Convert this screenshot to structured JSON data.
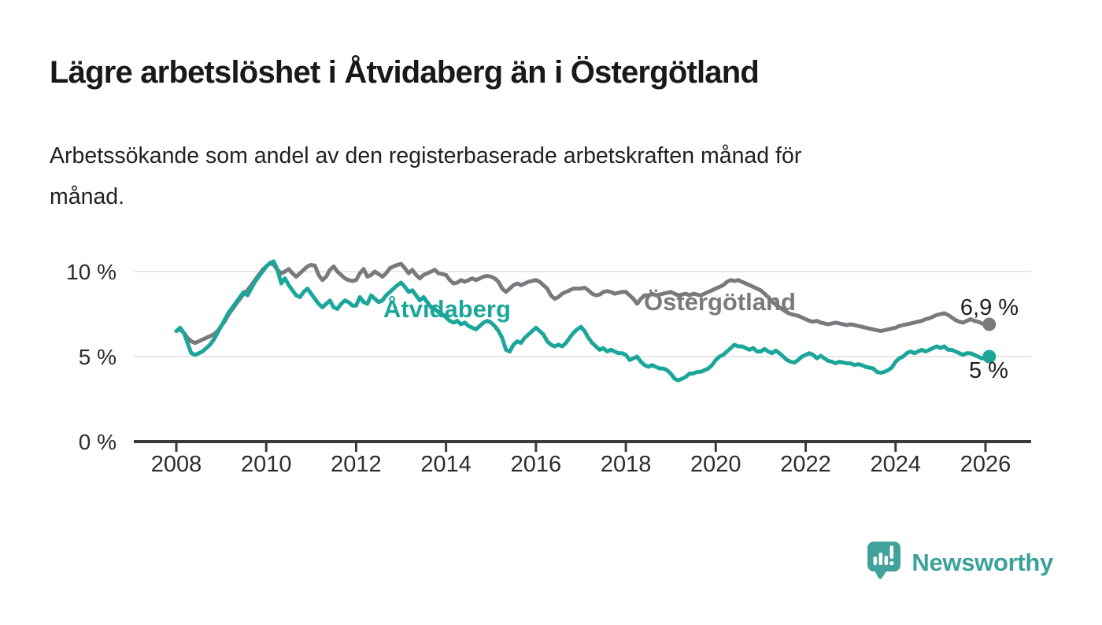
{
  "header": {
    "title": "Lägre arbetslöshet i Åtvidaberg än i Östergötland",
    "subtitle": "Arbetssökande som andel av den registerbaserade arbetskraften månad för månad."
  },
  "chart_data": {
    "type": "line",
    "frequency": "monthly",
    "x_start": {
      "year": 2008,
      "month": 1
    },
    "x_end": {
      "year": 2026,
      "month": 2
    },
    "x_tick_years": [
      2008,
      2010,
      2012,
      2014,
      2016,
      2018,
      2020,
      2022,
      2024,
      2026
    ],
    "y_axis": {
      "range": [
        0,
        11
      ],
      "ticks": [
        {
          "value": 0,
          "label": "0 %",
          "gridline": false,
          "is_axis": true
        },
        {
          "value": 5,
          "label": "5 %",
          "gridline": true,
          "is_axis": false
        },
        {
          "value": 10,
          "label": "10 %",
          "gridline": true,
          "is_axis": false
        }
      ]
    },
    "grid": "horizontal",
    "legend_position": "inline-labels",
    "series": [
      {
        "name": "Östergötland",
        "color": "#7a7a7e",
        "end_label": "6,9 %",
        "end_value": 6.9,
        "values": [
          6.5,
          6.6,
          6.4,
          6.1,
          5.9,
          5.8,
          5.9,
          6.0,
          6.1,
          6.2,
          6.3,
          6.5,
          6.8,
          7.1,
          7.5,
          7.8,
          8.1,
          8.4,
          8.7,
          8.9,
          9.2,
          9.5,
          9.8,
          10.1,
          10.3,
          10.5,
          10.4,
          10.1,
          9.9,
          10.0,
          10.15,
          9.9,
          9.7,
          9.9,
          10.1,
          10.3,
          10.4,
          10.35,
          9.8,
          9.5,
          9.7,
          10.1,
          10.3,
          10.0,
          9.8,
          9.6,
          9.5,
          9.45,
          9.5,
          9.9,
          10.15,
          9.7,
          9.8,
          10.0,
          9.85,
          9.7,
          9.9,
          10.2,
          10.3,
          10.4,
          10.45,
          10.2,
          9.9,
          10.1,
          9.8,
          9.6,
          9.8,
          9.9,
          10.0,
          10.1,
          9.9,
          9.85,
          9.8,
          9.5,
          9.3,
          9.35,
          9.5,
          9.4,
          9.5,
          9.6,
          9.5,
          9.6,
          9.7,
          9.75,
          9.7,
          9.6,
          9.4,
          9.0,
          8.8,
          9.0,
          9.2,
          9.3,
          9.2,
          9.3,
          9.4,
          9.45,
          9.5,
          9.4,
          9.2,
          9.0,
          8.6,
          8.4,
          8.5,
          8.7,
          8.8,
          8.9,
          9.0,
          9.0,
          9.0,
          9.05,
          8.9,
          8.7,
          8.6,
          8.65,
          8.8,
          8.85,
          8.8,
          8.7,
          8.75,
          8.8,
          8.8,
          8.6,
          8.4,
          8.1,
          8.4,
          8.6,
          8.6,
          8.7,
          8.6,
          8.65,
          8.7,
          8.75,
          8.8,
          8.7,
          8.6,
          8.65,
          8.7,
          8.6,
          8.7,
          8.65,
          8.6,
          8.7,
          8.8,
          8.9,
          9.0,
          9.1,
          9.2,
          9.4,
          9.5,
          9.45,
          9.5,
          9.4,
          9.3,
          9.2,
          9.1,
          9.0,
          8.9,
          8.7,
          8.5,
          8.25,
          8.05,
          7.9,
          7.75,
          7.6,
          7.5,
          7.45,
          7.4,
          7.3,
          7.2,
          7.1,
          7.05,
          7.1,
          7.0,
          6.95,
          6.9,
          6.95,
          7.0,
          6.95,
          6.9,
          6.85,
          6.9,
          6.85,
          6.8,
          6.75,
          6.7,
          6.65,
          6.6,
          6.55,
          6.5,
          6.55,
          6.6,
          6.65,
          6.7,
          6.8,
          6.85,
          6.9,
          6.95,
          7.0,
          7.05,
          7.1,
          7.2,
          7.25,
          7.35,
          7.45,
          7.5,
          7.55,
          7.45,
          7.3,
          7.15,
          7.05,
          7.0,
          7.1,
          7.2,
          7.1,
          7.05,
          6.95,
          6.9,
          6.9
        ]
      },
      {
        "name": "Åtvidaberg",
        "color": "#1ca69a",
        "end_label": "5 %",
        "end_value": 5.0,
        "values": [
          6.5,
          6.7,
          6.4,
          5.8,
          5.2,
          5.1,
          5.2,
          5.3,
          5.5,
          5.7,
          6.0,
          6.4,
          6.8,
          7.2,
          7.6,
          7.9,
          8.2,
          8.5,
          8.8,
          8.6,
          9.0,
          9.4,
          9.7,
          10.0,
          10.3,
          10.5,
          10.6,
          10.1,
          9.3,
          9.6,
          9.2,
          8.9,
          8.6,
          8.5,
          8.8,
          9.0,
          8.7,
          8.4,
          8.1,
          7.9,
          8.1,
          8.3,
          7.9,
          7.8,
          8.1,
          8.3,
          8.2,
          8.0,
          8.0,
          8.5,
          8.2,
          8.1,
          8.6,
          8.4,
          8.2,
          8.3,
          8.6,
          8.8,
          9.0,
          9.2,
          9.35,
          9.1,
          8.8,
          8.9,
          8.6,
          8.3,
          8.5,
          8.2,
          7.9,
          7.8,
          7.6,
          7.5,
          7.3,
          7.1,
          7.0,
          7.1,
          6.9,
          7.0,
          6.8,
          6.7,
          6.6,
          6.8,
          7.0,
          7.1,
          7.0,
          6.8,
          6.5,
          6.1,
          5.4,
          5.3,
          5.7,
          5.9,
          5.8,
          6.1,
          6.3,
          6.5,
          6.7,
          6.5,
          6.3,
          5.9,
          5.7,
          5.6,
          5.7,
          5.6,
          5.8,
          6.1,
          6.4,
          6.6,
          6.75,
          6.5,
          6.1,
          5.8,
          5.6,
          5.4,
          5.5,
          5.3,
          5.4,
          5.3,
          5.2,
          5.2,
          5.1,
          4.8,
          4.9,
          5.0,
          4.7,
          4.5,
          4.4,
          4.5,
          4.4,
          4.3,
          4.3,
          4.2,
          4.0,
          3.7,
          3.6,
          3.7,
          3.8,
          4.0,
          4.0,
          4.1,
          4.1,
          4.2,
          4.3,
          4.5,
          4.8,
          5.0,
          5.1,
          5.3,
          5.5,
          5.7,
          5.6,
          5.6,
          5.5,
          5.4,
          5.5,
          5.3,
          5.3,
          5.45,
          5.3,
          5.2,
          5.35,
          5.2,
          5.0,
          4.8,
          4.7,
          4.65,
          4.8,
          5.0,
          5.1,
          5.2,
          5.1,
          4.9,
          5.05,
          4.9,
          4.75,
          4.7,
          4.6,
          4.7,
          4.65,
          4.6,
          4.6,
          4.5,
          4.55,
          4.5,
          4.4,
          4.35,
          4.3,
          4.1,
          4.05,
          4.1,
          4.2,
          4.35,
          4.7,
          4.9,
          5.0,
          5.2,
          5.3,
          5.2,
          5.3,
          5.4,
          5.3,
          5.4,
          5.5,
          5.6,
          5.5,
          5.6,
          5.4,
          5.4,
          5.3,
          5.2,
          5.1,
          5.2,
          5.2,
          5.1,
          5.0,
          4.9,
          4.9,
          5.0
        ]
      }
    ]
  },
  "branding": {
    "name": "Newsworthy",
    "logo_icon": "bar-chart-speech-bubble-icon",
    "color": "#3ba19b"
  },
  "colors": {
    "title": "#191919",
    "axis": "#3a3a3a",
    "tick_label": "#2d2d2d",
    "gridline": "#e0e0e0",
    "end_label": "#1d1d1d"
  }
}
